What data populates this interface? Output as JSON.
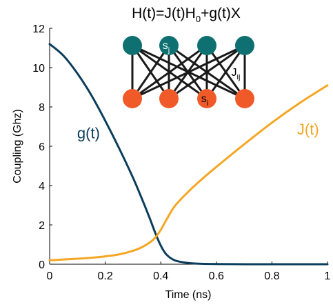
{
  "chart_data": {
    "type": "line",
    "title": "H(t)=J(t)H0+g(t)X",
    "title_parts": {
      "prefix": "H(t)=J(t)H",
      "sub": "0",
      "suffix": "+g(t)X"
    },
    "xlabel": "Time (ns)",
    "ylabel": "Coupling (Ghz)",
    "xlim": [
      0,
      1
    ],
    "ylim": [
      0,
      12
    ],
    "xticks": [
      0,
      0.2,
      0.4,
      0.6,
      0.8,
      1
    ],
    "xtick_labels": [
      "0",
      "0.2",
      "0.4",
      "0.6",
      "0.8",
      "1"
    ],
    "yticks": [
      0,
      2,
      4,
      6,
      8,
      10,
      12
    ],
    "ytick_labels": [
      "0",
      "2",
      "4",
      "6",
      "8",
      "10",
      "12"
    ],
    "grid": false,
    "series": [
      {
        "name": "g(t)",
        "color": "#0b3d5c",
        "x": [
          0,
          0.05,
          0.1,
          0.15,
          0.2,
          0.25,
          0.3,
          0.33,
          0.36,
          0.38,
          0.4,
          0.42,
          0.45,
          0.5,
          0.55,
          0.6,
          0.7,
          0.8,
          0.9,
          1.0
        ],
        "y": [
          11.2,
          10.6,
          9.7,
          8.6,
          7.3,
          5.9,
          4.4,
          3.4,
          2.35,
          1.6,
          0.95,
          0.5,
          0.2,
          0.06,
          0.02,
          0.01,
          0.0,
          0.0,
          0.0,
          0.0
        ]
      },
      {
        "name": "J(t)",
        "color": "#f5a623",
        "x": [
          0,
          0.05,
          0.1,
          0.15,
          0.2,
          0.25,
          0.3,
          0.33,
          0.36,
          0.38,
          0.4,
          0.42,
          0.45,
          0.5,
          0.55,
          0.6,
          0.7,
          0.8,
          0.9,
          1.0
        ],
        "y": [
          0.2,
          0.24,
          0.28,
          0.33,
          0.4,
          0.5,
          0.68,
          0.85,
          1.1,
          1.35,
          1.75,
          2.25,
          2.95,
          3.7,
          4.35,
          4.95,
          6.1,
          7.2,
          8.2,
          9.1
        ]
      }
    ],
    "annotations": [
      {
        "text": "g(t)",
        "x": 0.14,
        "y": 6.4,
        "color": "#0b3d5c"
      },
      {
        "text": "J(t)",
        "x": 0.93,
        "y": 6.6,
        "color": "#f5a623"
      }
    ],
    "inset_graph": {
      "top_color": "#0e7070",
      "bottom_color": "#f05a28",
      "edge_color": "#1a1a1a",
      "top_label_main": "s",
      "top_label_sub": "j",
      "top_label_node": 1,
      "bottom_label_main": "s",
      "bottom_label_sub": "i",
      "bottom_label_node": 2,
      "edge_label_main": "J",
      "edge_label_sub": "ij"
    }
  }
}
